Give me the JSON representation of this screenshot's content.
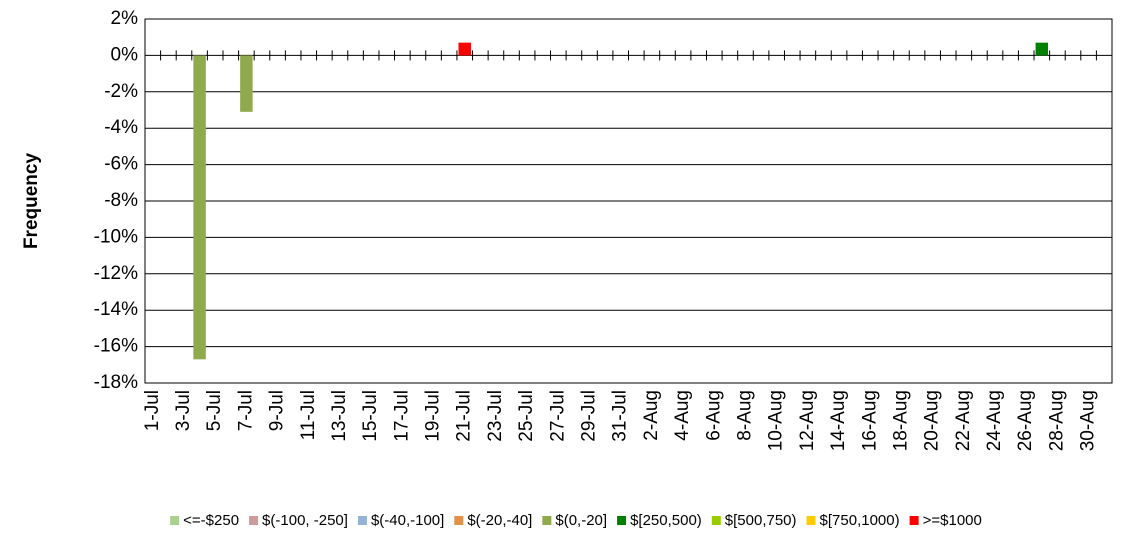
{
  "chart_data": {
    "type": "bar",
    "y_label": "Frequency",
    "categories": [
      "1-Jul",
      null,
      "3-Jul",
      null,
      "5-Jul",
      null,
      "7-Jul",
      null,
      "9-Jul",
      null,
      "11-Jul",
      null,
      "13-Jul",
      null,
      "15-Jul",
      null,
      "17-Jul",
      null,
      "19-Jul",
      null,
      "21-Jul",
      null,
      "23-Jul",
      null,
      "25-Jul",
      null,
      "27-Jul",
      null,
      "29-Jul",
      null,
      "31-Jul",
      null,
      "2-Aug",
      null,
      "4-Aug",
      null,
      "6-Aug",
      null,
      "8-Aug",
      null,
      "10-Aug",
      null,
      "12-Aug",
      null,
      "14-Aug",
      null,
      "16-Aug",
      null,
      "18-Aug",
      null,
      "20-Aug",
      null,
      "22-Aug",
      null,
      "24-Aug",
      null,
      "26-Aug",
      null,
      "28-Aug",
      null,
      "30-Aug",
      null
    ],
    "series": [
      {
        "name": "<=-$250",
        "color": "#a9d18e",
        "values": [
          null,
          null,
          null,
          null,
          null,
          null,
          null,
          null,
          null,
          null,
          null,
          null,
          null,
          null,
          null,
          null,
          null,
          null,
          null,
          null,
          null,
          null,
          null,
          null,
          null,
          null,
          null,
          null,
          null,
          null,
          null,
          null,
          null,
          null,
          null,
          null,
          null,
          null,
          null,
          null,
          null,
          null,
          null,
          null,
          null,
          null,
          null,
          null,
          null,
          null,
          null,
          null,
          null,
          null,
          null,
          null,
          null,
          null,
          null,
          null,
          null,
          null
        ]
      },
      {
        "name": "$(-100, -250]",
        "color": "#d09a9a",
        "values": [
          null,
          null,
          null,
          null,
          null,
          null,
          null,
          null,
          null,
          null,
          null,
          null,
          null,
          null,
          null,
          null,
          null,
          null,
          null,
          null,
          null,
          null,
          null,
          null,
          null,
          null,
          null,
          null,
          null,
          null,
          null,
          null,
          null,
          null,
          null,
          null,
          null,
          null,
          null,
          null,
          null,
          null,
          null,
          null,
          null,
          null,
          null,
          null,
          null,
          null,
          null,
          null,
          null,
          null,
          null,
          null,
          null,
          null,
          null,
          null,
          null,
          null
        ]
      },
      {
        "name": "$(-40,-100]",
        "color": "#95b3d7",
        "values": [
          null,
          null,
          null,
          null,
          null,
          null,
          null,
          null,
          null,
          null,
          null,
          null,
          null,
          null,
          null,
          null,
          null,
          null,
          null,
          null,
          null,
          null,
          null,
          null,
          null,
          null,
          null,
          null,
          null,
          null,
          null,
          null,
          null,
          null,
          null,
          null,
          null,
          null,
          null,
          null,
          null,
          null,
          null,
          null,
          null,
          null,
          null,
          null,
          null,
          null,
          null,
          null,
          null,
          null,
          null,
          null,
          null,
          null,
          null,
          null,
          null,
          null
        ]
      },
      {
        "name": "$(-20,-40]",
        "color": "#e0914a",
        "values": [
          null,
          null,
          null,
          null,
          null,
          null,
          null,
          null,
          null,
          null,
          null,
          null,
          null,
          null,
          null,
          null,
          null,
          null,
          null,
          null,
          null,
          null,
          null,
          null,
          null,
          null,
          null,
          null,
          null,
          null,
          null,
          null,
          null,
          null,
          null,
          null,
          null,
          null,
          null,
          null,
          null,
          null,
          null,
          null,
          null,
          null,
          null,
          null,
          null,
          null,
          null,
          null,
          null,
          null,
          null,
          null,
          null,
          null,
          null,
          null,
          null,
          null
        ]
      },
      {
        "name": "$(0,-20]",
        "color": "#8faa4d",
        "values": [
          null,
          null,
          null,
          -16.7,
          null,
          null,
          -3.1,
          null,
          null,
          null,
          null,
          null,
          null,
          null,
          null,
          null,
          null,
          null,
          null,
          null,
          null,
          null,
          null,
          null,
          null,
          null,
          null,
          null,
          null,
          null,
          null,
          null,
          null,
          null,
          null,
          null,
          null,
          null,
          null,
          null,
          null,
          null,
          null,
          null,
          null,
          null,
          null,
          null,
          null,
          null,
          null,
          null,
          null,
          null,
          null,
          null,
          null,
          null,
          null,
          null,
          null,
          null
        ]
      },
      {
        "name": "$[250,500)",
        "color": "#008000",
        "values": [
          null,
          null,
          null,
          null,
          null,
          null,
          null,
          null,
          null,
          null,
          null,
          null,
          null,
          null,
          null,
          null,
          null,
          null,
          null,
          null,
          null,
          null,
          null,
          null,
          null,
          null,
          null,
          null,
          null,
          null,
          null,
          null,
          null,
          null,
          null,
          null,
          null,
          null,
          null,
          null,
          null,
          null,
          null,
          null,
          null,
          null,
          null,
          null,
          null,
          null,
          null,
          null,
          null,
          null,
          null,
          null,
          null,
          0.7,
          null,
          null,
          null,
          null
        ]
      },
      {
        "name": "$[500,750)",
        "color": "#99cc00",
        "values": [
          null,
          null,
          null,
          null,
          null,
          null,
          null,
          null,
          null,
          null,
          null,
          null,
          null,
          null,
          null,
          null,
          null,
          null,
          null,
          null,
          null,
          null,
          null,
          null,
          null,
          null,
          null,
          null,
          null,
          null,
          null,
          null,
          null,
          null,
          null,
          null,
          null,
          null,
          null,
          null,
          null,
          null,
          null,
          null,
          null,
          null,
          null,
          null,
          null,
          null,
          null,
          null,
          null,
          null,
          null,
          null,
          null,
          null,
          null,
          null,
          null,
          null
        ]
      },
      {
        "name": "$[750,1000)",
        "color": "#ffcc00",
        "values": [
          null,
          null,
          null,
          null,
          null,
          null,
          null,
          null,
          null,
          null,
          null,
          null,
          null,
          null,
          null,
          null,
          null,
          null,
          null,
          null,
          null,
          null,
          null,
          null,
          null,
          null,
          null,
          null,
          null,
          null,
          null,
          null,
          null,
          null,
          null,
          null,
          null,
          null,
          null,
          null,
          null,
          null,
          null,
          null,
          null,
          null,
          null,
          null,
          null,
          null,
          null,
          null,
          null,
          null,
          null,
          null,
          null,
          null,
          null,
          null,
          null,
          null
        ]
      },
      {
        "name": ">=$1000",
        "color": "#ff0000",
        "values": [
          null,
          null,
          null,
          null,
          null,
          null,
          null,
          null,
          null,
          null,
          null,
          null,
          null,
          null,
          null,
          null,
          null,
          null,
          null,
          null,
          0.7,
          null,
          null,
          null,
          null,
          null,
          null,
          null,
          null,
          null,
          null,
          null,
          null,
          null,
          null,
          null,
          null,
          null,
          null,
          null,
          null,
          null,
          null,
          null,
          null,
          null,
          null,
          null,
          null,
          null,
          null,
          null,
          null,
          null,
          null,
          null,
          null,
          null,
          null,
          null,
          null,
          null
        ]
      }
    ],
    "ylim": [
      -18,
      2
    ],
    "yticks": [
      {
        "value": -18,
        "label": "-18%"
      },
      {
        "value": -16,
        "label": "-16%"
      },
      {
        "value": -14,
        "label": "-14%"
      },
      {
        "value": -12,
        "label": "-12%"
      },
      {
        "value": -10,
        "label": "-10%"
      },
      {
        "value": -8,
        "label": "-8%"
      },
      {
        "value": -6,
        "label": "-6%"
      },
      {
        "value": -4,
        "label": "-4%"
      },
      {
        "value": -2,
        "label": "-2%"
      },
      {
        "value": 0,
        "label": "0%"
      },
      {
        "value": 2,
        "label": "2%"
      }
    ],
    "grid": true,
    "legend": "bottom"
  }
}
